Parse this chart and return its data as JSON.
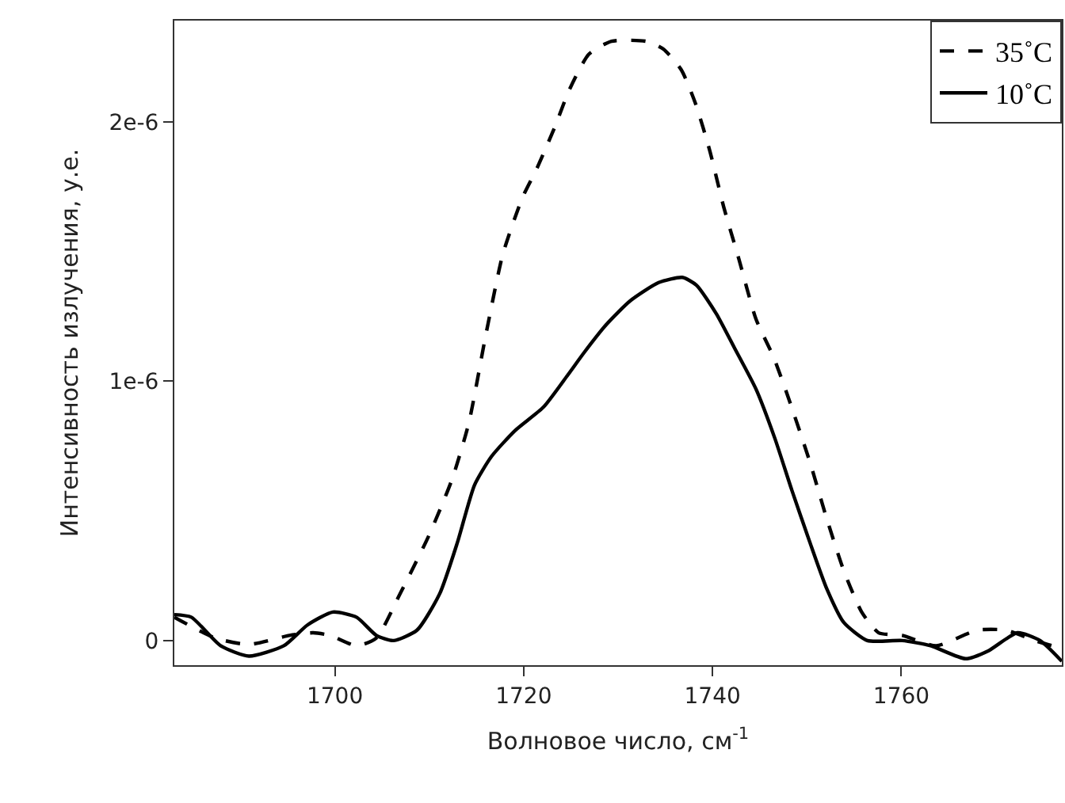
{
  "chart_data": {
    "type": "line",
    "xlabel": "Волновое число, см$^{-1}$",
    "ylabel": "Интенсивность излучения, у.е.",
    "xlim": [
      1683,
      1777
    ],
    "xticks": [
      1700,
      1720,
      1740,
      1760
    ],
    "ylim": [
      -9.5e-08,
      2.39e-06
    ],
    "yticks": [
      0,
      {
        "value": 1e-06,
        "label": "1e-6"
      },
      {
        "value": 2e-06,
        "label": "2e-6"
      }
    ],
    "legend": "top right",
    "marker": "none",
    "series": [
      {
        "name": "35˚C",
        "color": "#000000",
        "line_style": "dashed",
        "x": [
          1683,
          1687.3,
          1690.9,
          1695.2,
          1697.7,
          1699.5,
          1702.3,
          1704.4,
          1706.9,
          1709.9,
          1712.4,
          1714.2,
          1716.0,
          1717.8,
          1719.9,
          1721.4,
          1723.3,
          1724.8,
          1726.9,
          1729.3,
          1733.0,
          1734.8,
          1736.7,
          1738.2,
          1739.7,
          1741.2,
          1742.8,
          1744.6,
          1746.5,
          1748.0,
          1750.3,
          1752.1,
          1753.9,
          1755.8,
          1757.6,
          1760.1,
          1763.7,
          1768.0,
          1771.1,
          1774.1,
          1777
        ],
        "values": [
          9e-08,
          1e-08,
          -1.5e-08,
          2e-08,
          3e-08,
          2e-08,
          -2e-08,
          1e-08,
          1.8e-07,
          4e-07,
          6.2e-07,
          8.4e-07,
          1.18e-06,
          1.49e-06,
          1.71e-06,
          1.82e-06,
          1.98e-06,
          2.12e-06,
          2.26e-06,
          2.31e-06,
          2.31e-06,
          2.28e-06,
          2.2e-06,
          2.07e-06,
          1.89e-06,
          1.67e-06,
          1.47e-06,
          1.24e-06,
          1.09e-06,
          9.4e-07,
          6.9e-07,
          4.7e-07,
          2.7e-07,
          1.1e-07,
          3e-08,
          2e-08,
          -2e-08,
          4e-08,
          4e-08,
          0,
          -3e-08
        ]
      },
      {
        "name": "10˚C",
        "color": "#000000",
        "line_style": "solid",
        "x": [
          1683,
          1684.8,
          1687.9,
          1690.9,
          1694.6,
          1697.1,
          1699.8,
          1702.3,
          1704.4,
          1706.2,
          1708.7,
          1711.1,
          1713.0,
          1714.8,
          1716.6,
          1719.1,
          1722.1,
          1724.6,
          1726.4,
          1728.8,
          1731.3,
          1734.3,
          1736.8,
          1738.3,
          1740.4,
          1742.3,
          1744.6,
          1746.6,
          1748.4,
          1750.3,
          1752.1,
          1753.9,
          1756.4,
          1760.1,
          1763.1,
          1766.8,
          1769.2,
          1772.3,
          1774.7,
          1777
        ],
        "values": [
          1e-07,
          9e-08,
          -2e-08,
          -6e-08,
          -2e-08,
          6e-08,
          1.1e-07,
          9e-08,
          2e-08,
          0,
          4e-08,
          1.8e-07,
          3.8e-07,
          6e-07,
          7.1e-07,
          8.1e-07,
          9e-07,
          1.02e-06,
          1.11e-06,
          1.22e-06,
          1.31e-06,
          1.38e-06,
          1.4e-06,
          1.37e-06,
          1.26e-06,
          1.13e-06,
          9.7e-07,
          7.8e-07,
          5.8e-07,
          3.8e-07,
          2e-07,
          7e-08,
          0,
          0,
          -2e-08,
          -7e-08,
          -4e-08,
          3e-08,
          0,
          -8e-08
        ]
      }
    ]
  }
}
